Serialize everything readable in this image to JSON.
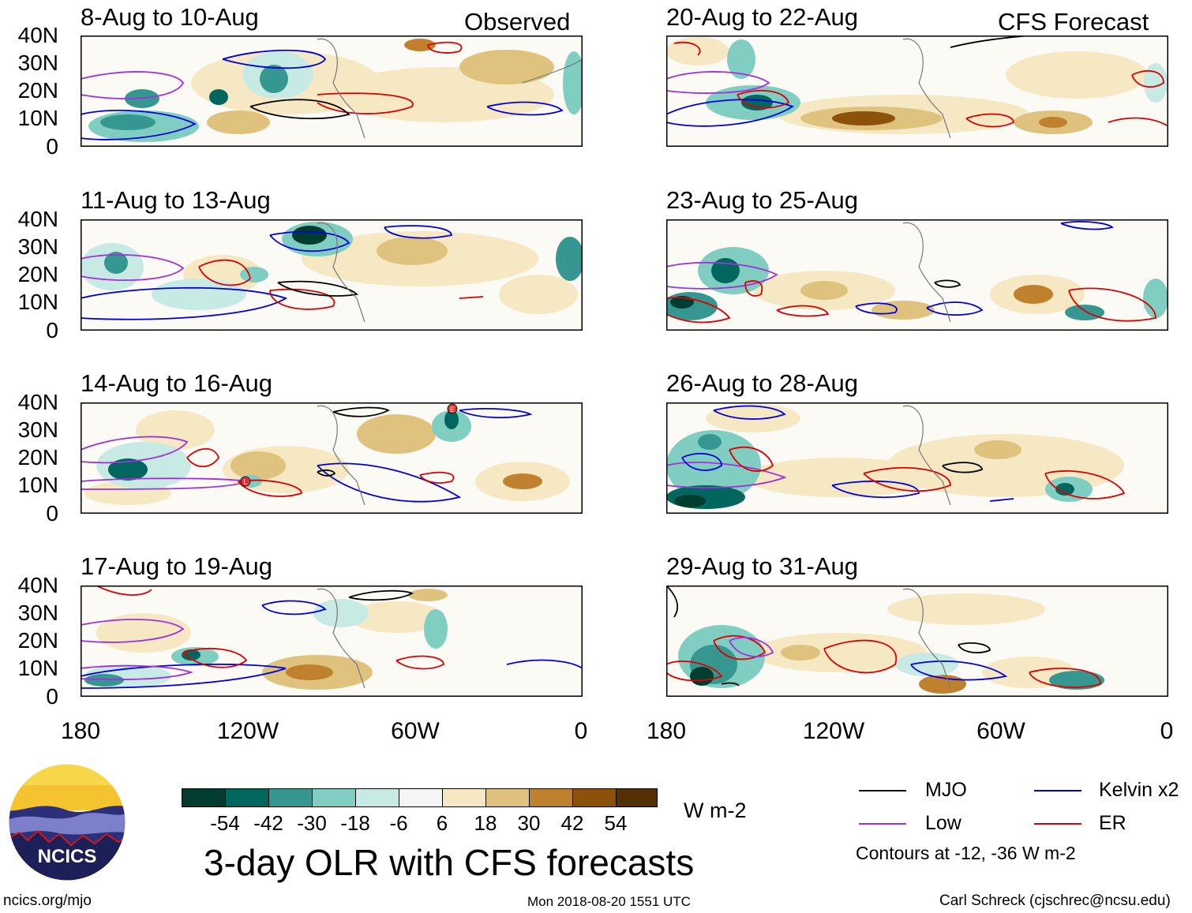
{
  "columns": {
    "left": {
      "tag": "Observed"
    },
    "right": {
      "tag": "CFS Forecast"
    }
  },
  "panels": {
    "left": [
      {
        "title": "8-Aug to 10-Aug"
      },
      {
        "title": "11-Aug to 13-Aug"
      },
      {
        "title": "14-Aug to 16-Aug"
      },
      {
        "title": "17-Aug to 19-Aug"
      }
    ],
    "right": [
      {
        "title": "20-Aug to 22-Aug"
      },
      {
        "title": "23-Aug to 25-Aug"
      },
      {
        "title": "26-Aug to 28-Aug"
      },
      {
        "title": "29-Aug to 31-Aug"
      }
    ]
  },
  "axes": {
    "y_ticks": [
      "40N",
      "30N",
      "20N",
      "10N",
      "0"
    ],
    "x_ticks": [
      "180",
      "120W",
      "60W",
      "0"
    ]
  },
  "storm_markers": {
    "left_panel3": [
      "E",
      "L"
    ]
  },
  "colorbar": {
    "labels": [
      "-54",
      "-42",
      "-30",
      "-18",
      "-6",
      "6",
      "18",
      "30",
      "42",
      "54"
    ],
    "units": "W m-2",
    "colors": [
      "#003c30",
      "#01665e",
      "#35978f",
      "#80cdc1",
      "#c7eae5",
      "#f5f5f5",
      "#f6e8c3",
      "#dfc27d",
      "#bf812d",
      "#8c510a",
      "#543005"
    ]
  },
  "main_title": "3-day OLR with CFS forecasts",
  "legend": {
    "items": [
      {
        "label": "MJO",
        "color": "#000000"
      },
      {
        "label": "Kelvin x2",
        "color": "#0000dd"
      },
      {
        "label": "Low",
        "color": "#a030e0"
      },
      {
        "label": "ER",
        "color": "#dd0000"
      }
    ],
    "note": "Contours at -12, -36 W m-2"
  },
  "logo": {
    "text": "NCICS"
  },
  "footer": {
    "url": "ncics.org/mjo",
    "timestamp": "Mon 2018-08-20 1551 UTC",
    "credit": "Carl Schreck (cjschrec@ncsu.edu)"
  }
}
